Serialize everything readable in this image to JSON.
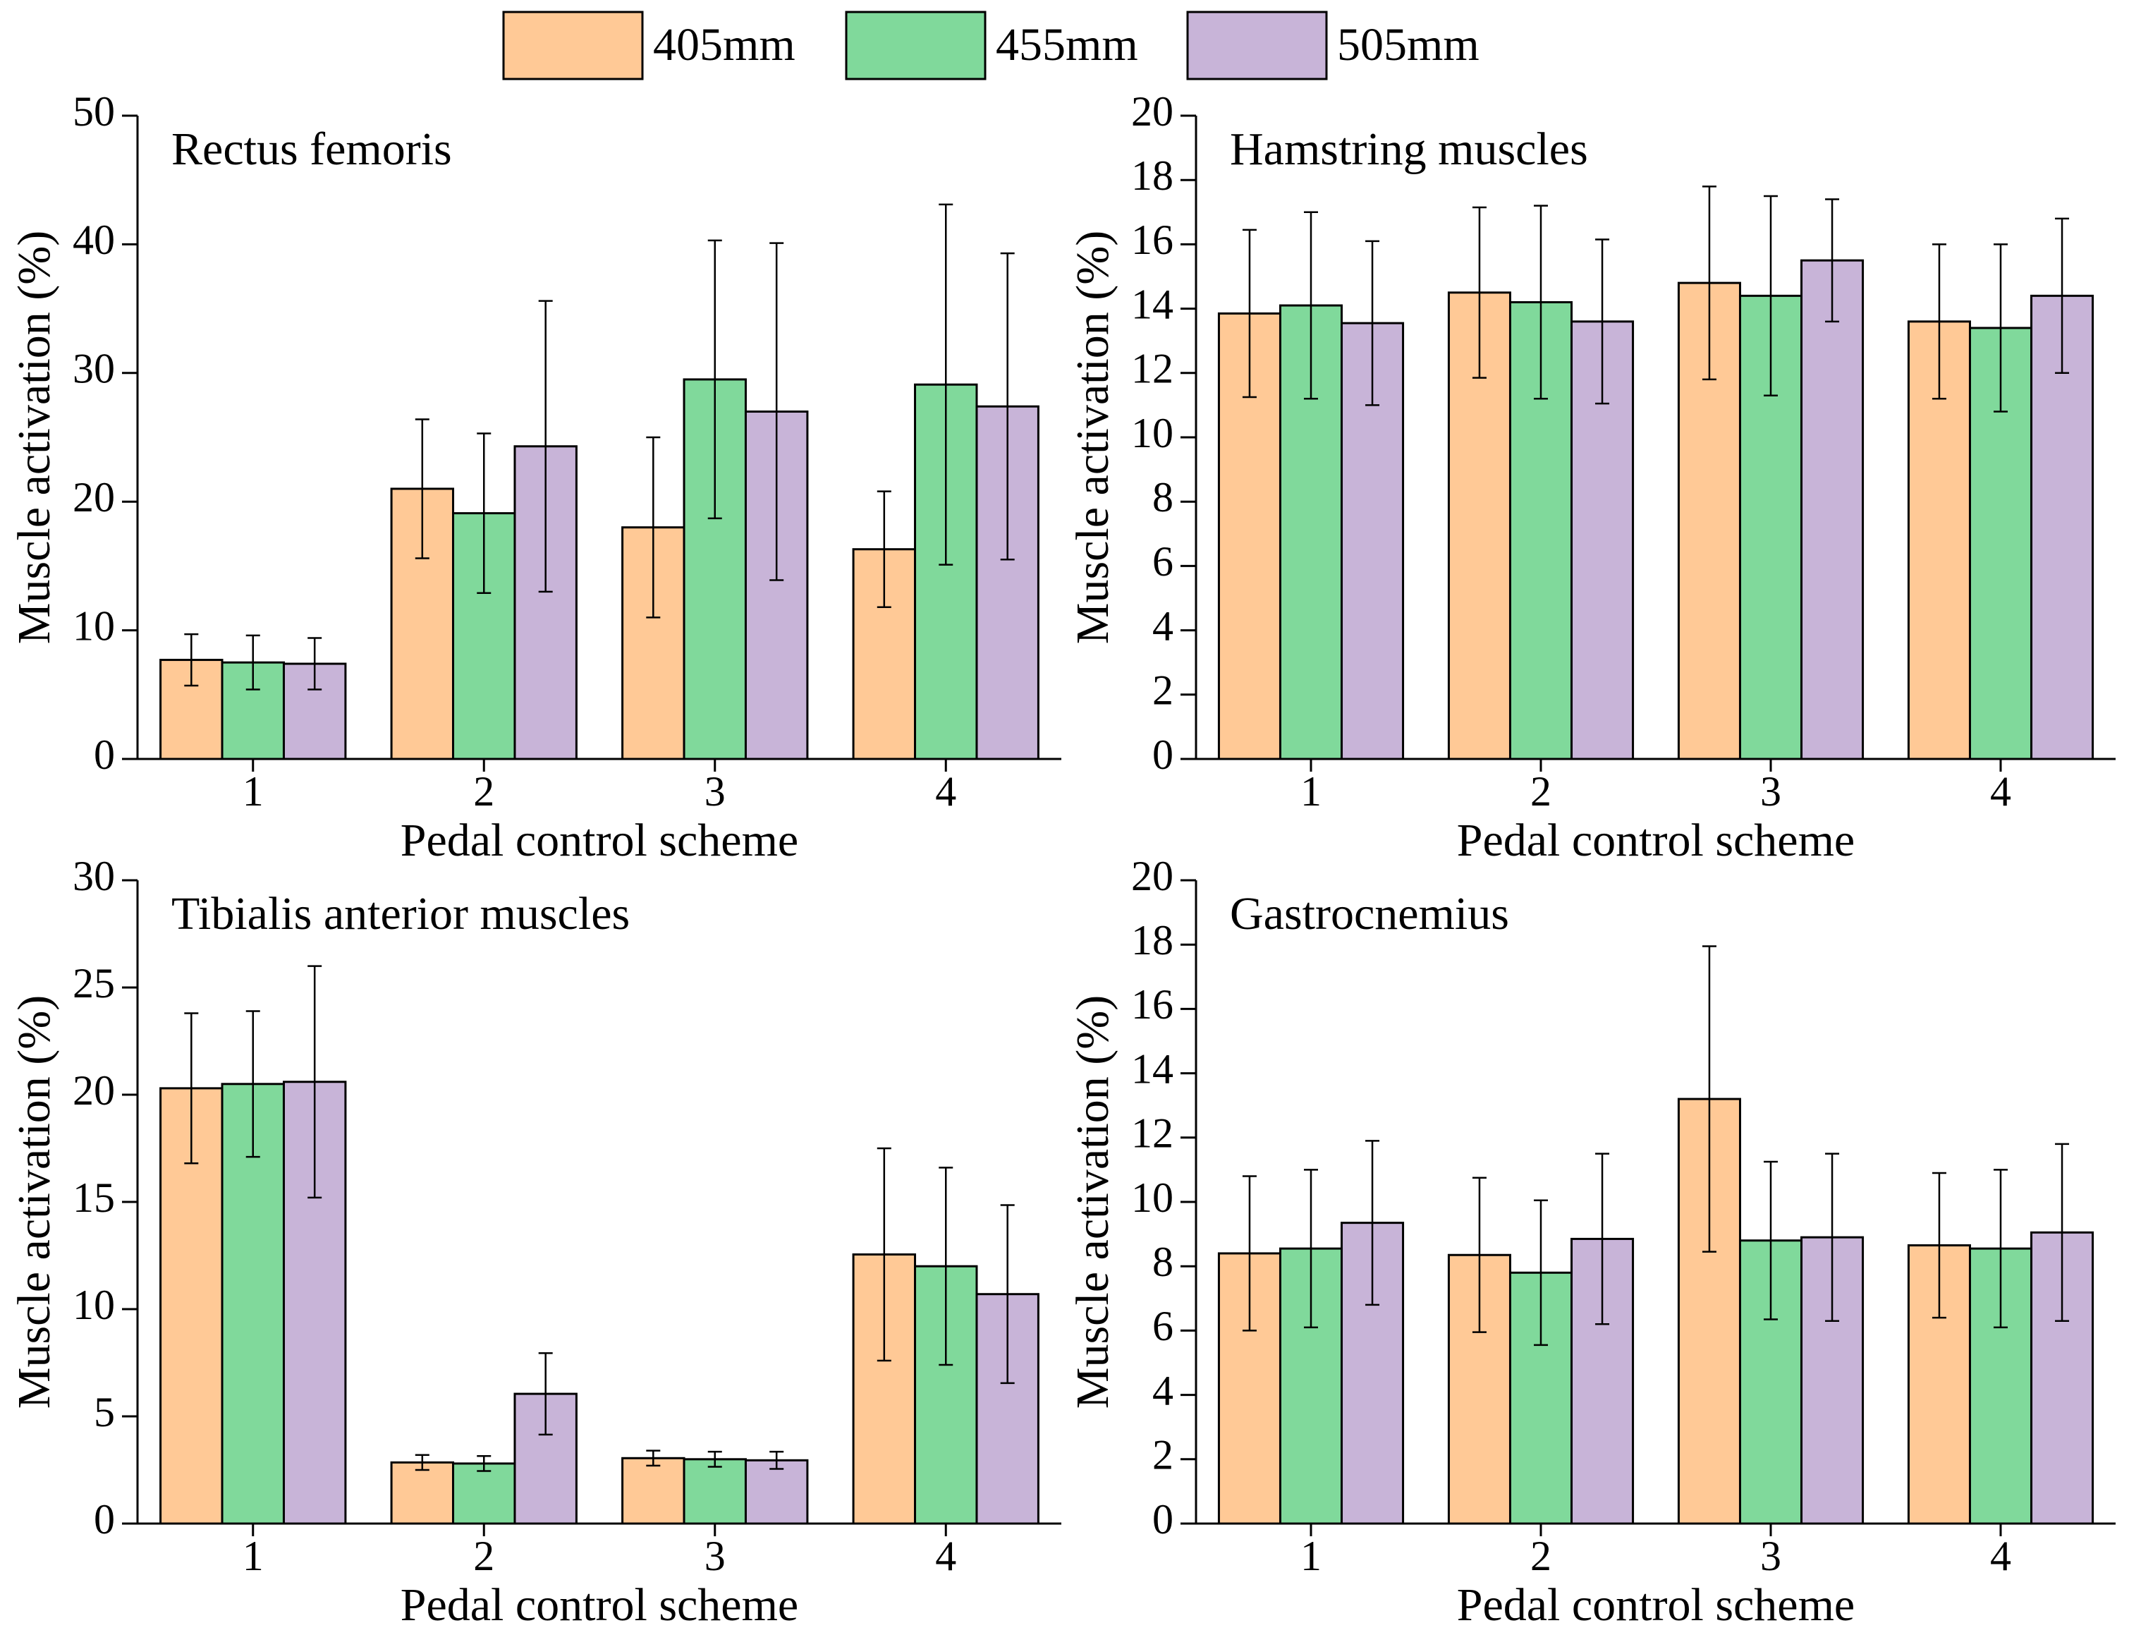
{
  "chart_data": [
    {
      "type": "bar",
      "title": "Rectus femoris",
      "xlabel": "Pedal control scheme",
      "ylabel": "Muscle activation (%)",
      "categories": [
        "1",
        "2",
        "3",
        "4"
      ],
      "ylim": [
        0,
        50
      ],
      "yticks": [
        0,
        10,
        20,
        30,
        40,
        50
      ],
      "series": [
        {
          "name": "405mm",
          "color": "#ffc996",
          "values": [
            7.7,
            21,
            18,
            16.3
          ],
          "errors": [
            2,
            5.4,
            7,
            4.5
          ]
        },
        {
          "name": "455mm",
          "color": "#80d99b",
          "values": [
            7.5,
            19.1,
            29.5,
            29.1
          ],
          "errors": [
            2.1,
            6.2,
            10.8,
            14
          ]
        },
        {
          "name": "505mm",
          "color": "#c8b4d8",
          "values": [
            7.4,
            24.3,
            27,
            27.4
          ],
          "errors": [
            2,
            11.3,
            13.1,
            11.9
          ]
        }
      ]
    },
    {
      "type": "bar",
      "title": "Hamstring muscles",
      "xlabel": "Pedal control scheme",
      "ylabel": "Muscle activation (%)",
      "categories": [
        "1",
        "2",
        "3",
        "4"
      ],
      "ylim": [
        0,
        20
      ],
      "yticks": [
        0,
        2,
        4,
        6,
        8,
        10,
        12,
        14,
        16,
        18,
        20
      ],
      "series": [
        {
          "name": "405mm",
          "color": "#ffc996",
          "values": [
            13.85,
            14.5,
            14.8,
            13.6
          ],
          "errors": [
            2.6,
            2.65,
            3,
            2.4
          ]
        },
        {
          "name": "455mm",
          "color": "#80d99b",
          "values": [
            14.1,
            14.2,
            14.4,
            13.4
          ],
          "errors": [
            2.9,
            3,
            3.1,
            2.6
          ]
        },
        {
          "name": "505mm",
          "color": "#c8b4d8",
          "values": [
            13.55,
            13.6,
            15.5,
            14.4
          ],
          "errors": [
            2.55,
            2.55,
            1.9,
            2.4
          ]
        }
      ]
    },
    {
      "type": "bar",
      "title": "Tibialis anterior muscles",
      "xlabel": "Pedal control scheme",
      "ylabel": "Muscle activation (%)",
      "categories": [
        "1",
        "2",
        "3",
        "4"
      ],
      "ylim": [
        0,
        30
      ],
      "yticks": [
        0,
        5,
        10,
        15,
        20,
        25,
        30
      ],
      "series": [
        {
          "name": "405mm",
          "color": "#ffc996",
          "values": [
            20.3,
            2.85,
            3.05,
            12.55
          ],
          "errors": [
            3.5,
            0.35,
            0.35,
            4.95
          ]
        },
        {
          "name": "455mm",
          "color": "#80d99b",
          "values": [
            20.5,
            2.8,
            3,
            12
          ],
          "errors": [
            3.4,
            0.35,
            0.35,
            4.6
          ]
        },
        {
          "name": "505mm",
          "color": "#c8b4d8",
          "values": [
            20.6,
            6.05,
            2.95,
            10.7
          ],
          "errors": [
            5.4,
            1.9,
            0.4,
            4.15
          ]
        }
      ]
    },
    {
      "type": "bar",
      "title": "Gastrocnemius",
      "xlabel": "Pedal control scheme",
      "ylabel": "Muscle activation (%)",
      "categories": [
        "1",
        "2",
        "3",
        "4"
      ],
      "ylim": [
        0,
        20
      ],
      "yticks": [
        0,
        2,
        4,
        6,
        8,
        10,
        12,
        14,
        16,
        18,
        20
      ],
      "series": [
        {
          "name": "405mm",
          "color": "#ffc996",
          "values": [
            8.4,
            8.35,
            13.2,
            8.65
          ],
          "errors": [
            2.4,
            2.4,
            4.75,
            2.25
          ]
        },
        {
          "name": "455mm",
          "color": "#80d99b",
          "values": [
            8.55,
            7.8,
            8.8,
            8.55
          ],
          "errors": [
            2.45,
            2.25,
            2.45,
            2.45
          ]
        },
        {
          "name": "505mm",
          "color": "#c8b4d8",
          "values": [
            9.35,
            8.85,
            8.9,
            9.05
          ],
          "errors": [
            2.55,
            2.65,
            2.6,
            2.75
          ]
        }
      ]
    }
  ]
}
